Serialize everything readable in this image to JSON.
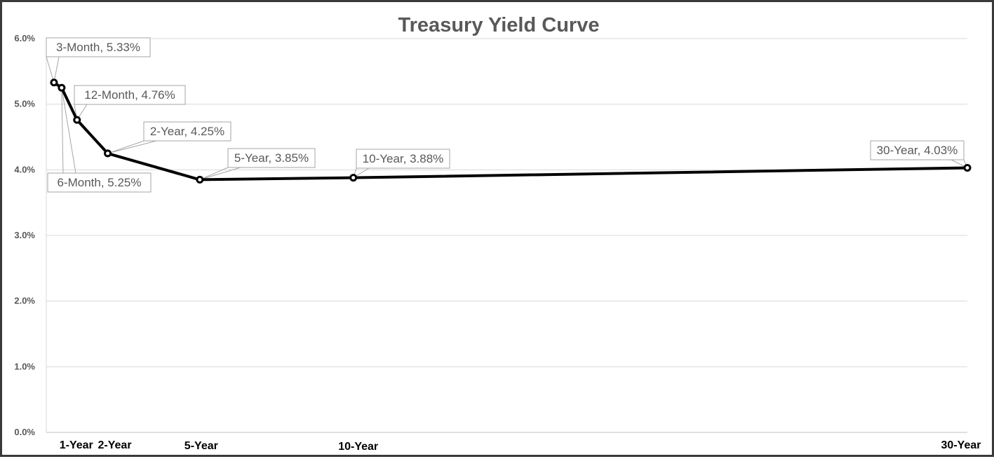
{
  "chart_data": {
    "type": "line",
    "title": "Treasury Yield Curve",
    "xlabel": "",
    "ylabel": "",
    "x_unit": "years to maturity",
    "xlim": [
      0,
      30
    ],
    "ylim": [
      0,
      6
    ],
    "y_ticks": [
      "0.0%",
      "1.0%",
      "2.0%",
      "3.0%",
      "4.0%",
      "5.0%",
      "6.0%"
    ],
    "x_tick_labels": [
      {
        "label": "1-Year",
        "x": 1
      },
      {
        "label": "2-Year",
        "x": 2
      },
      {
        "label": "5-Year",
        "x": 5
      },
      {
        "label": "10-Year",
        "x": 10
      },
      {
        "label": "30-Year",
        "x": 30
      }
    ],
    "grid": true,
    "legend": "none",
    "series": [
      {
        "color": "#000000",
        "points": [
          {
            "x": 0.25,
            "y": 5.33,
            "label": "3-Month, 5.33%"
          },
          {
            "x": 0.5,
            "y": 5.25,
            "label": "6-Month, 5.25%"
          },
          {
            "x": 1,
            "y": 4.76,
            "label": "12-Month, 4.76%"
          },
          {
            "x": 2,
            "y": 4.25,
            "label": "2-Year, 4.25%"
          },
          {
            "x": 5,
            "y": 3.85,
            "label": "5-Year, 3.85%"
          },
          {
            "x": 10,
            "y": 3.88,
            "label": "10-Year, 3.88%"
          },
          {
            "x": 30,
            "y": 4.03,
            "label": "30-Year, 4.03%"
          }
        ]
      }
    ],
    "colors": {
      "line": "#000000",
      "grid": "#d9d9d9",
      "text": "#595959",
      "label_border": "#a6a6a6",
      "frame": "#3a3a3a"
    }
  }
}
